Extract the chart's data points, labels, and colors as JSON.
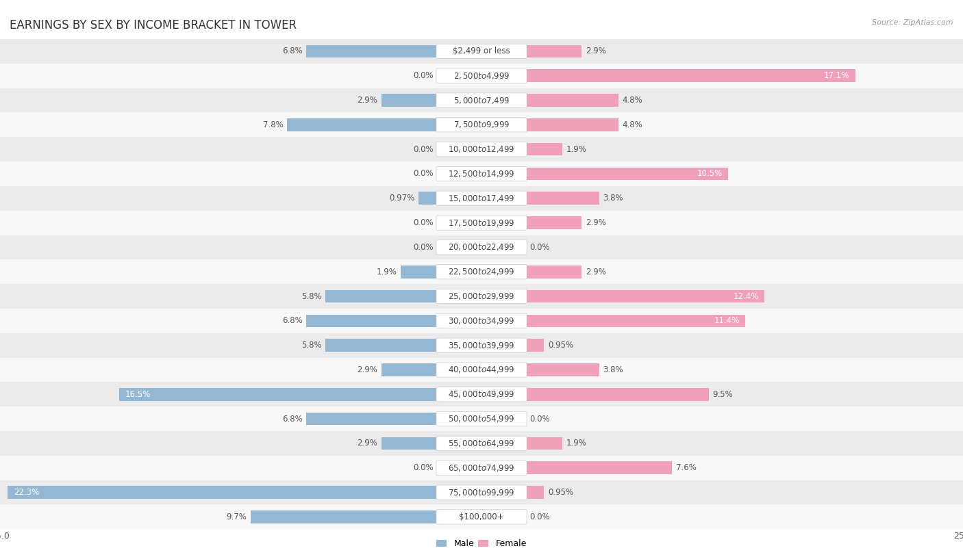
{
  "title": "EARNINGS BY SEX BY INCOME BRACKET IN TOWER",
  "source": "Source: ZipAtlas.com",
  "categories": [
    "$2,499 or less",
    "$2,500 to $4,999",
    "$5,000 to $7,499",
    "$7,500 to $9,999",
    "$10,000 to $12,499",
    "$12,500 to $14,999",
    "$15,000 to $17,499",
    "$17,500 to $19,999",
    "$20,000 to $22,499",
    "$22,500 to $24,999",
    "$25,000 to $29,999",
    "$30,000 to $34,999",
    "$35,000 to $39,999",
    "$40,000 to $44,999",
    "$45,000 to $49,999",
    "$50,000 to $54,999",
    "$55,000 to $64,999",
    "$65,000 to $74,999",
    "$75,000 to $99,999",
    "$100,000+"
  ],
  "male_values": [
    6.8,
    0.0,
    2.9,
    7.8,
    0.0,
    0.0,
    0.97,
    0.0,
    0.0,
    1.9,
    5.8,
    6.8,
    5.8,
    2.9,
    16.5,
    6.8,
    2.9,
    0.0,
    22.3,
    9.7
  ],
  "female_values": [
    2.9,
    17.1,
    4.8,
    4.8,
    1.9,
    10.5,
    3.8,
    2.9,
    0.0,
    2.9,
    12.4,
    11.4,
    0.95,
    3.8,
    9.5,
    0.0,
    1.9,
    7.6,
    0.95,
    0.0
  ],
  "male_color": "#94b8d4",
  "female_color": "#f0a0b8",
  "background_row_odd": "#ebebeb",
  "background_row_even": "#f8f8f8",
  "xlim": 25.0,
  "legend_male": "Male",
  "legend_female": "Female",
  "title_fontsize": 12,
  "label_fontsize": 8.5,
  "category_fontsize": 8.5,
  "tick_fontsize": 9,
  "inside_label_threshold_male": 10.0,
  "inside_label_threshold_female": 10.0
}
